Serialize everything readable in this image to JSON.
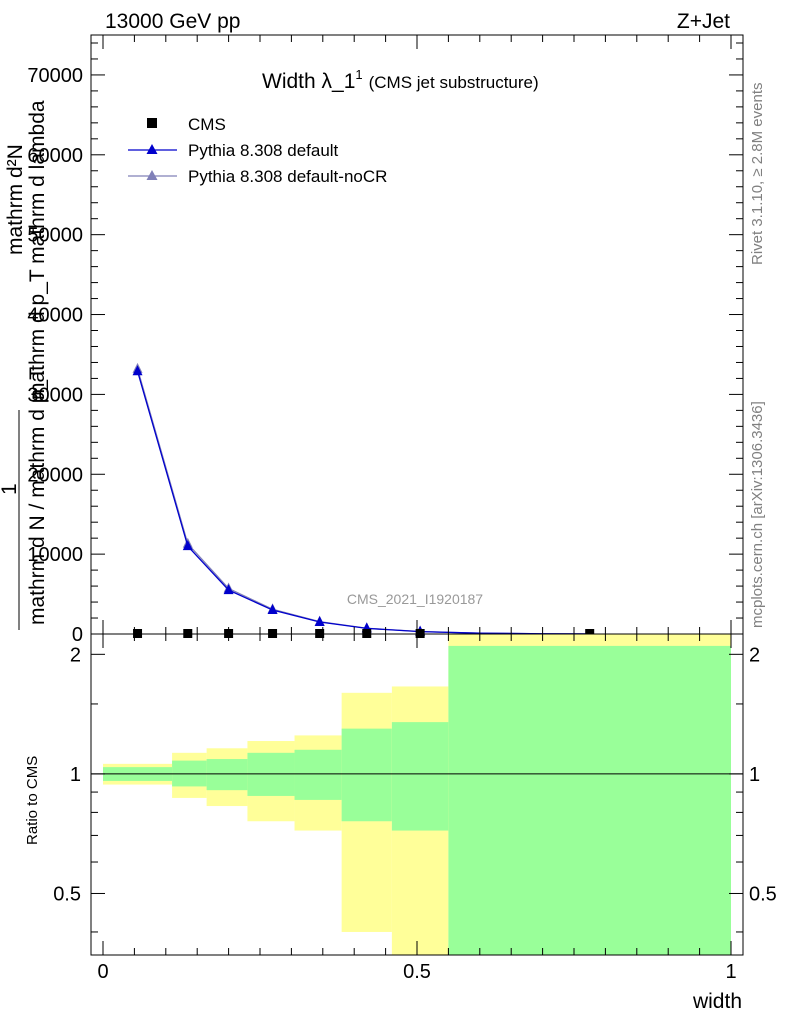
{
  "header": {
    "left": "13000 GeV pp",
    "right": "Z+Jet"
  },
  "side": {
    "rivet": "Rivet 3.1.10, ≥ 2.8M events",
    "mcplots": "mcplots.cern.ch [arXiv:1306.3436]"
  },
  "colors": {
    "cms": "#000000",
    "pythia_default": "#0000cc",
    "pythia_nocr": "#8080b8",
    "band_yellow": "#ffff99",
    "band_green": "#99ff99"
  },
  "chart_data": [
    {
      "type": "line",
      "title": "Width λ_1",
      "title_sup": "1",
      "title_note": "(CMS jet substructure)",
      "watermark": "CMS_2021_I1920187",
      "ylabel": {
        "numerator_frac": "1",
        "numerator_top": "mathrm d N / mathrm d p",
        "numerator_sub": "T",
        "numerator_rest": " mathrm d lambda",
        "top_line": "mathrm d",
        "top_super": "2",
        "top_rest": "N"
      },
      "ylabel_lines": [
        "mathrm d²N",
        "mathrm d p_T mathrm d lambda",
        "1",
        "mathrm d N / mathrm d p_T"
      ],
      "ylim": [
        0,
        75000
      ],
      "xlim": [
        0,
        1
      ],
      "yticks": [
        0,
        10000,
        20000,
        30000,
        40000,
        50000,
        60000,
        70000
      ],
      "yticklabels": [
        "0",
        "10000",
        "20000",
        "30000",
        "40000",
        "50000",
        "60000",
        "70000"
      ],
      "legend_position": "top-left",
      "series": [
        {
          "name": "CMS",
          "marker": "square",
          "x": [
            0.055,
            0.135,
            0.2,
            0.27,
            0.345,
            0.42,
            0.505,
            0.775
          ],
          "y": [
            0,
            0,
            0,
            0,
            0,
            0,
            0,
            0
          ]
        },
        {
          "name": "Pythia 8.308 default",
          "marker": "triangle",
          "x": [
            0.055,
            0.135,
            0.2,
            0.27,
            0.345,
            0.42,
            0.505,
            0.6,
            0.7,
            0.775
          ],
          "y": [
            32900,
            11000,
            5500,
            3000,
            1500,
            700,
            300,
            100,
            30,
            10
          ]
        },
        {
          "name": "Pythia 8.308 default-noCR",
          "marker": "triangle",
          "x": [
            0.055,
            0.135,
            0.2,
            0.27,
            0.345,
            0.42,
            0.505,
            0.6,
            0.7,
            0.775
          ],
          "y": [
            33200,
            11300,
            5700,
            3100,
            1550,
            720,
            310,
            100,
            30,
            10
          ]
        }
      ]
    },
    {
      "type": "area",
      "ylabel": "Ratio to CMS",
      "xlabel": "width",
      "xlim": [
        0,
        1
      ],
      "ylim": [
        0.35,
        2.25
      ],
      "xticks": [
        0,
        0.5,
        1
      ],
      "xticklabels": [
        "0",
        "0.5",
        "1"
      ],
      "yticks": [
        0.5,
        1,
        2
      ],
      "yticklabels": [
        "0.5",
        "1",
        "2"
      ],
      "reference_line": 1,
      "bins": [
        {
          "lo": 0.0,
          "hi": 0.11,
          "y_lo": 0.94,
          "y_hi": 1.06,
          "g_lo": 0.96,
          "g_hi": 1.04
        },
        {
          "lo": 0.11,
          "hi": 0.165,
          "y_lo": 0.87,
          "y_hi": 1.13,
          "g_lo": 0.93,
          "g_hi": 1.08
        },
        {
          "lo": 0.165,
          "hi": 0.23,
          "y_lo": 0.83,
          "y_hi": 1.16,
          "g_lo": 0.91,
          "g_hi": 1.09
        },
        {
          "lo": 0.23,
          "hi": 0.305,
          "y_lo": 0.76,
          "y_hi": 1.21,
          "g_lo": 0.88,
          "g_hi": 1.13
        },
        {
          "lo": 0.305,
          "hi": 0.38,
          "y_lo": 0.72,
          "y_hi": 1.25,
          "g_lo": 0.86,
          "g_hi": 1.15
        },
        {
          "lo": 0.38,
          "hi": 0.46,
          "y_lo": 0.4,
          "y_hi": 1.6,
          "g_lo": 0.76,
          "g_hi": 1.3
        },
        {
          "lo": 0.46,
          "hi": 0.55,
          "y_lo": 0.35,
          "y_hi": 1.66,
          "g_lo": 0.72,
          "g_hi": 1.35
        },
        {
          "lo": 0.55,
          "hi": 1.0,
          "y_lo": 0.35,
          "y_hi": 2.25,
          "g_lo": 0.35,
          "g_hi": 2.1
        }
      ]
    }
  ]
}
